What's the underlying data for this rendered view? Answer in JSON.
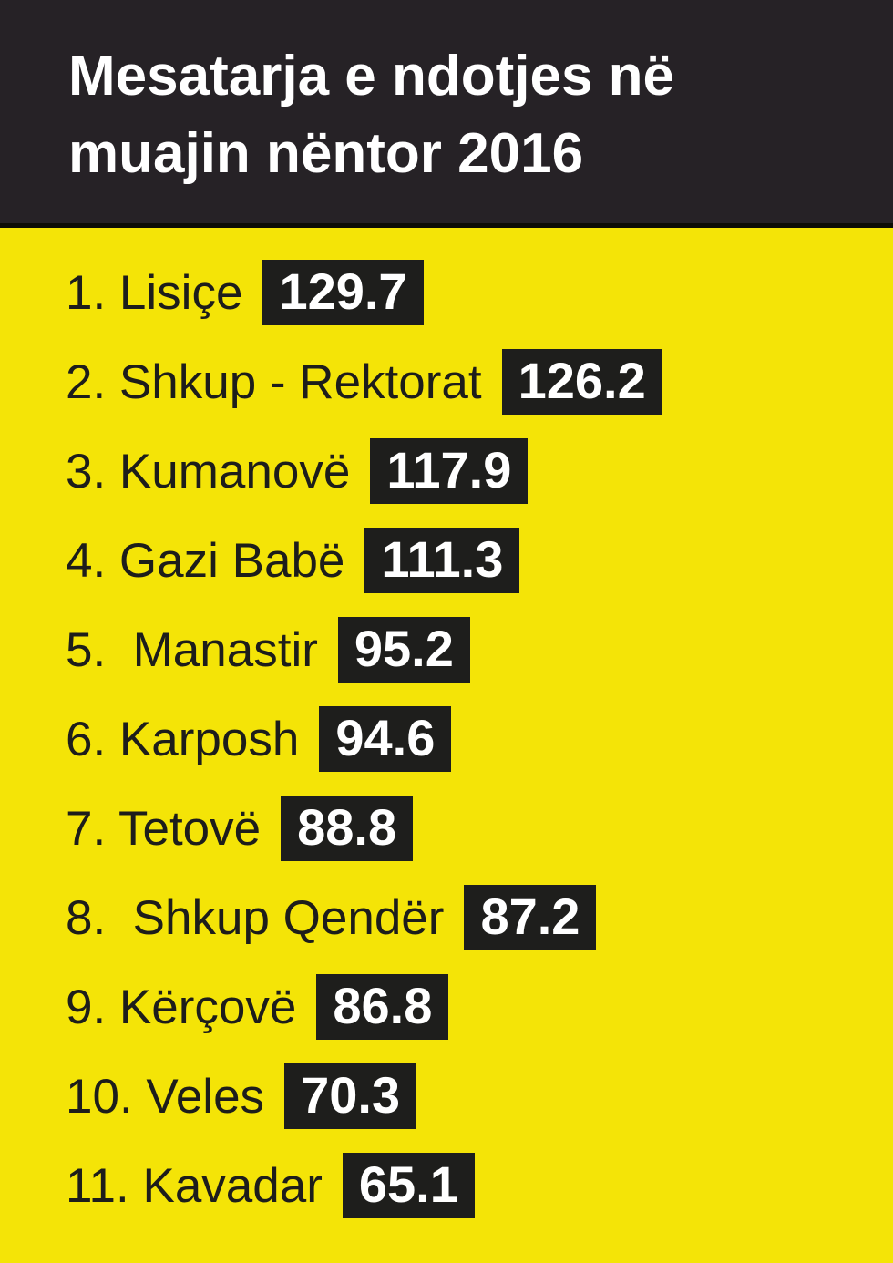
{
  "header": {
    "title_line1": "Mesatarja e ndotjes në",
    "title_line2": "muajin nëntor 2016"
  },
  "list": {
    "items": [
      {
        "label": "1. Lisiçe",
        "value": "129.7"
      },
      {
        "label": "2. Shkup - Rektorat",
        "value": "126.2"
      },
      {
        "label": "3. Kumanovë",
        "value": "117.9"
      },
      {
        "label": "4. Gazi Babë",
        "value": "111.3"
      },
      {
        "label": "5.  Manastir",
        "value": "95.2"
      },
      {
        "label": "6. Karposh",
        "value": "94.6"
      },
      {
        "label": "7. Tetovë",
        "value": "88.8"
      },
      {
        "label": "8.  Shkup Qendër",
        "value": "87.2"
      },
      {
        "label": "9. Kërçovë",
        "value": "86.8"
      },
      {
        "label": "10. Veles",
        "value": "70.3"
      },
      {
        "label": "11. Kavadar",
        "value": "65.1"
      }
    ]
  },
  "colors": {
    "background": "#f4e407",
    "header_bg": "#262226",
    "header_edge": "#0d0d06",
    "box_bg": "#1e1e1c",
    "title_color": "#ffffff",
    "label_color": "#1d1d1b",
    "value_color": "#ffffff"
  },
  "chart_data": {
    "type": "table",
    "title": "Mesatarja e ndotjes në muajin nëntor 2016",
    "categories": [
      "Lisiçe",
      "Shkup - Rektorat",
      "Kumanovë",
      "Gazi Babë",
      "Manastir",
      "Karposh",
      "Tetovë",
      "Shkup Qendër",
      "Kërçovë",
      "Veles",
      "Kavadar"
    ],
    "values": [
      129.7,
      126.2,
      117.9,
      111.3,
      95.2,
      94.6,
      88.8,
      87.2,
      86.8,
      70.3,
      65.1
    ],
    "ranks": [
      1,
      2,
      3,
      4,
      5,
      6,
      7,
      8,
      9,
      10,
      11
    ],
    "legend_position": "none",
    "grid": false
  }
}
